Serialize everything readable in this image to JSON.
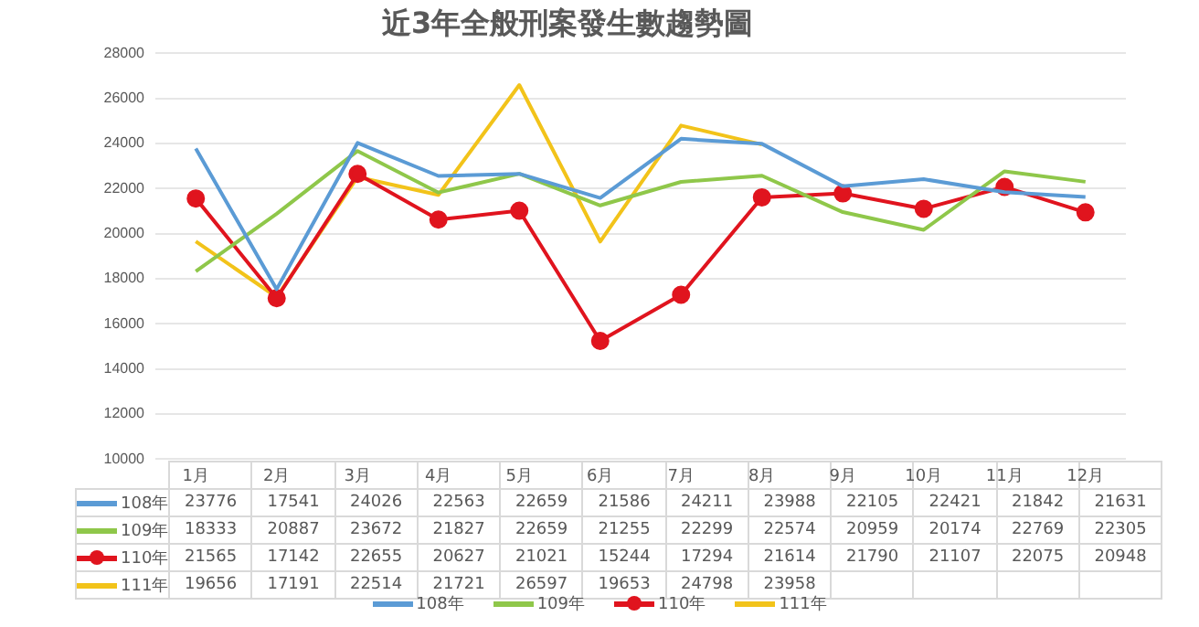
{
  "chart_data": {
    "type": "line",
    "title": "近3年全般刑案發生數趨勢圖",
    "categories": [
      "1月",
      "2月",
      "3月",
      "4月",
      "5月",
      "6月",
      "7月",
      "8月",
      "9月",
      "10月",
      "11月",
      "12月"
    ],
    "series": [
      {
        "name": "108年",
        "color": "#5b9bd5",
        "marker": "none",
        "values": [
          23776,
          17541,
          24026,
          22563,
          22659,
          21586,
          24211,
          23988,
          22105,
          22421,
          21842,
          21631
        ]
      },
      {
        "name": "109年",
        "color": "#8fc74a",
        "marker": "none",
        "values": [
          18333,
          20887,
          23672,
          21827,
          22659,
          21255,
          22299,
          22574,
          20959,
          20174,
          22769,
          22305
        ]
      },
      {
        "name": "110年",
        "color": "#e0141e",
        "marker": "circle",
        "values": [
          21565,
          17142,
          22655,
          20627,
          21021,
          15244,
          17294,
          21614,
          21790,
          21107,
          22075,
          20948
        ]
      },
      {
        "name": "111年",
        "color": "#f2c31a",
        "marker": "none",
        "values": [
          19656,
          17191,
          22514,
          21721,
          26597,
          19653,
          24798,
          23958,
          null,
          null,
          null,
          null
        ]
      }
    ],
    "ylim": [
      10000,
      28000
    ],
    "yticks": [
      10000,
      12000,
      14000,
      16000,
      18000,
      20000,
      22000,
      24000,
      26000,
      28000
    ],
    "grid": "y",
    "legend": "bottom",
    "data_labels": true
  }
}
